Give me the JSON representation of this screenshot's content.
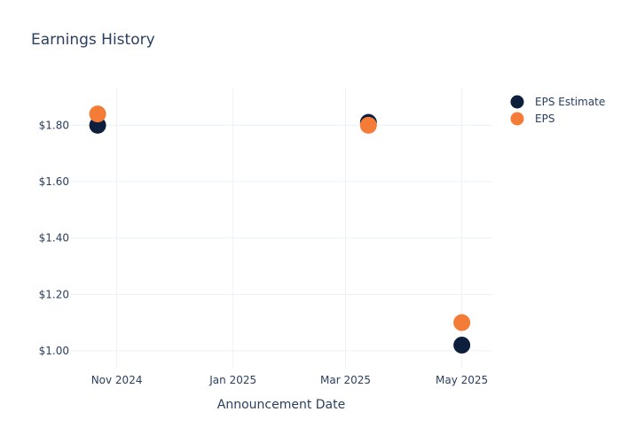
{
  "chart_data": {
    "type": "scatter",
    "title": "Earnings History",
    "xlabel": "Announcement Date",
    "ylabel": "",
    "x_ticks": [
      {
        "date": "2024-11-01",
        "label": "Nov 2024"
      },
      {
        "date": "2025-01-01",
        "label": "Jan 2025"
      },
      {
        "date": "2025-03-01",
        "label": "Mar 2025"
      },
      {
        "date": "2025-05-01",
        "label": "May 2025"
      }
    ],
    "xlim": [
      "2024-10-08",
      "2025-05-17"
    ],
    "y_ticks": [
      {
        "value": 1.0,
        "label": "$1.00"
      },
      {
        "value": 1.2,
        "label": "$1.20"
      },
      {
        "value": 1.4,
        "label": "$1.40"
      },
      {
        "value": 1.6,
        "label": "$1.60"
      },
      {
        "value": 1.8,
        "label": "$1.80"
      }
    ],
    "ylim": [
      0.94,
      1.93
    ],
    "grid": true,
    "legend_position": "top-right",
    "series": [
      {
        "name": "EPS Estimate",
        "color": "#0d1f3c",
        "points": [
          {
            "x": "2024-10-22",
            "y": 1.8
          },
          {
            "x": "2025-03-13",
            "y": 1.81
          },
          {
            "x": "2025-05-01",
            "y": 1.02
          }
        ]
      },
      {
        "name": "EPS",
        "color": "#f47c36",
        "points": [
          {
            "x": "2024-10-22",
            "y": 1.84
          },
          {
            "x": "2025-03-13",
            "y": 1.8
          },
          {
            "x": "2025-05-01",
            "y": 1.1
          }
        ]
      }
    ]
  }
}
